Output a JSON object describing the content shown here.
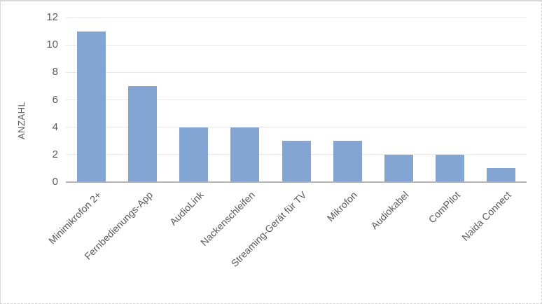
{
  "frame": {
    "background": "#FFFFFF",
    "border_color": "#D9D9D9"
  },
  "chart_data": {
    "type": "bar",
    "title": "",
    "categories": [
      "Minimikrofon 2+",
      "Fernbedienungs-App",
      "AudioLink",
      "Nackenschleifen",
      "Streaming-Gerät für TV",
      "Mikrofon",
      "Audiokabel",
      "ComPilot",
      "Naida Connect"
    ],
    "values": [
      11,
      7,
      4,
      4,
      3,
      3,
      2,
      2,
      1
    ],
    "xlabel": "",
    "ylabel": "ANZAHL",
    "ylim": [
      0,
      12
    ],
    "yticks": [
      0,
      2,
      4,
      6,
      8,
      10,
      12
    ],
    "grid": true,
    "legend": false,
    "x_tick_rotation_deg": 45,
    "colors": {
      "bar": "#83A5D3",
      "gridline": "#E8E8E8",
      "axis_line": "#B3B3B3",
      "text": "#595959"
    }
  }
}
